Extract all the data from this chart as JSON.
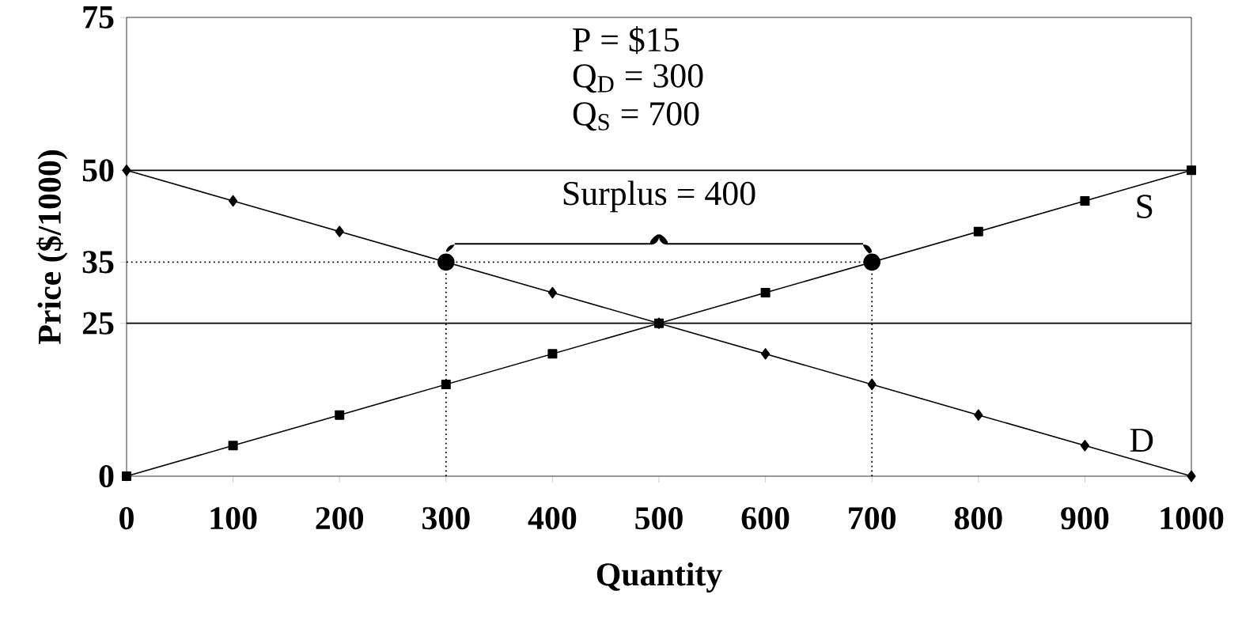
{
  "chart_data": {
    "type": "line",
    "xlabel": "Quantity",
    "ylabel": "Price ($/1000)",
    "x": [
      0,
      100,
      200,
      300,
      400,
      500,
      600,
      700,
      800,
      900,
      1000
    ],
    "series": [
      {
        "name": "D",
        "color": "#000000",
        "marker": "diamond",
        "values": [
          50,
          45,
          40,
          35,
          30,
          25,
          20,
          15,
          10,
          5,
          0
        ]
      },
      {
        "name": "S",
        "color": "#000000",
        "marker": "square",
        "values": [
          0,
          5,
          10,
          15,
          20,
          25,
          30,
          35,
          40,
          45,
          50
        ]
      },
      {
        "type": "scatter",
        "color": "#000000",
        "marker": "circle",
        "x": [
          300,
          700
        ],
        "values": [
          35,
          35
        ]
      }
    ],
    "xlim": [
      0,
      1000
    ],
    "ylim": [
      0,
      75
    ],
    "xticks": [
      0,
      100,
      200,
      300,
      400,
      500,
      600,
      700,
      800,
      900,
      1000
    ],
    "yticks": [
      0,
      25,
      35,
      50,
      75
    ],
    "ref_lines": [
      {
        "axis": "y",
        "value": 25,
        "line_style": "solid"
      },
      {
        "axis": "y",
        "value": 50,
        "line_style": "solid"
      },
      {
        "axis": "y",
        "value": 35,
        "line_style": "dotted"
      },
      {
        "axis": "x",
        "value": 300,
        "line_style": "dotted"
      },
      {
        "axis": "x",
        "value": 700,
        "line_style": "dotted"
      }
    ],
    "annotations": [
      "P = $15",
      "Q$_{D}$ = 300",
      "Q$_{S}$ = 700",
      "Surplus = 400"
    ],
    "line_style": "solid"
  }
}
